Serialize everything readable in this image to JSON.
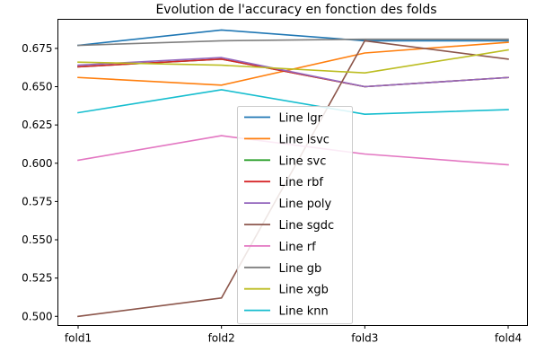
{
  "chart_data": {
    "type": "line",
    "title": "Evolution de l'accuracy en fonction des folds",
    "xlabel": "",
    "ylabel": "",
    "categories": [
      "fold1",
      "fold2",
      "fold3",
      "fold4"
    ],
    "ylim": [
      0.494,
      0.694
    ],
    "yticks": [
      0.5,
      0.525,
      0.55,
      0.575,
      0.6,
      0.625,
      0.65,
      0.675
    ],
    "ytick_labels": [
      "0.500",
      "0.525",
      "0.550",
      "0.575",
      "0.600",
      "0.625",
      "0.650",
      "0.675"
    ],
    "grid": false,
    "legend_position": "center-bottom",
    "series": [
      {
        "name": "Line lgr",
        "color": "#1f77b4",
        "values": [
          0.677,
          0.687,
          0.68,
          0.68
        ]
      },
      {
        "name": "Line lsvc",
        "color": "#ff7f0e",
        "values": [
          0.656,
          0.651,
          0.672,
          0.679
        ]
      },
      {
        "name": "Line svc",
        "color": "#2ca02c",
        "values": [
          0.663,
          0.668,
          0.65,
          0.656
        ]
      },
      {
        "name": "Line rbf",
        "color": "#d62728",
        "values": [
          0.663,
          0.668,
          0.65,
          0.656
        ]
      },
      {
        "name": "Line poly",
        "color": "#9467bd",
        "values": [
          0.664,
          0.669,
          0.65,
          0.656
        ]
      },
      {
        "name": "Line sgdc",
        "color": "#8c564b",
        "values": [
          0.5,
          0.512,
          0.68,
          0.668
        ]
      },
      {
        "name": "Line rf",
        "color": "#e377c2",
        "values": [
          0.602,
          0.618,
          0.606,
          0.599
        ]
      },
      {
        "name": "Line gb",
        "color": "#7f7f7f",
        "values": [
          0.677,
          0.68,
          0.681,
          0.681
        ]
      },
      {
        "name": "Line xgb",
        "color": "#bcbd22",
        "values": [
          0.666,
          0.664,
          0.659,
          0.674
        ]
      },
      {
        "name": "Line knn",
        "color": "#17becf",
        "values": [
          0.633,
          0.648,
          0.632,
          0.635
        ]
      }
    ]
  }
}
